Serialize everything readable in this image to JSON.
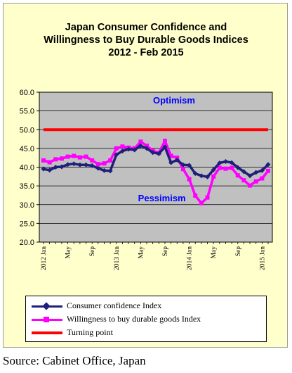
{
  "chart_data": {
    "type": "line",
    "title_lines": [
      "Japan Consumer Confidence and",
      "Willingness to Buy Durable Goods Indices",
      "2012 - Feb  2015"
    ],
    "ylim": [
      20,
      60
    ],
    "yticks": [
      "60.0",
      "55.0",
      "50.0",
      "45.0",
      "40.0",
      "35.0",
      "30.0",
      "25.0",
      "20.0"
    ],
    "ytick_values": [
      60,
      55,
      50,
      45,
      40,
      35,
      30,
      25,
      20
    ],
    "grid": true,
    "x_tick_labels": [
      {
        "label": "2012 Jan",
        "index": 0
      },
      {
        "label": "May",
        "index": 4
      },
      {
        "label": "Sep",
        "index": 8
      },
      {
        "label": "2013 Jan",
        "index": 12
      },
      {
        "label": "May",
        "index": 16
      },
      {
        "label": "Sep",
        "index": 20
      },
      {
        "label": "2014 Jan",
        "index": 24
      },
      {
        "label": "May",
        "index": 28
      },
      {
        "label": "Sep",
        "index": 32
      },
      {
        "label": "2015 Jan",
        "index": 36
      }
    ],
    "annotations": [
      {
        "text": "Optimism",
        "x_index": 21.5,
        "y": 57.0,
        "color": "#0000ff"
      },
      {
        "text": "Pessimism",
        "x_index": 19.5,
        "y": 30.9,
        "color": "#0000ff"
      }
    ],
    "turning_point": 50.0,
    "series": [
      {
        "name": "Consumer confidence Index",
        "color": "#1f1f7a",
        "marker": "diamond",
        "values": [
          39.5,
          39.2,
          40.0,
          40.1,
          40.7,
          40.9,
          40.6,
          40.6,
          40.4,
          39.7,
          39.1,
          39.0,
          43.3,
          44.3,
          44.8,
          44.6,
          45.7,
          45.0,
          43.9,
          43.6,
          45.4,
          41.2,
          41.9,
          40.6,
          40.5,
          38.3,
          37.7,
          37.4,
          39.3,
          41.1,
          41.5,
          41.2,
          39.9,
          38.8,
          37.7,
          38.6,
          39.1,
          40.7
        ]
      },
      {
        "name": "Willingness to buy durable goods Index",
        "color": "#ff00ff",
        "marker": "square",
        "values": [
          41.8,
          41.3,
          42.1,
          42.3,
          42.8,
          43.0,
          42.6,
          42.8,
          41.8,
          40.8,
          41.0,
          41.8,
          45.0,
          45.5,
          45.2,
          45.0,
          46.8,
          45.7,
          44.4,
          43.8,
          47.0,
          43.0,
          42.5,
          39.5,
          36.8,
          32.4,
          30.4,
          31.9,
          37.5,
          39.8,
          39.6,
          39.8,
          37.8,
          36.5,
          35.1,
          36.2,
          37.0,
          39.0
        ]
      },
      {
        "name": "Turning point",
        "color": "#ff0000",
        "marker": "none",
        "values": [
          50,
          50,
          50,
          50,
          50,
          50,
          50,
          50,
          50,
          50,
          50,
          50,
          50,
          50,
          50,
          50,
          50,
          50,
          50,
          50,
          50,
          50,
          50,
          50,
          50,
          50,
          50,
          50,
          50,
          50,
          50,
          50,
          50,
          50,
          50,
          50,
          50,
          50
        ]
      }
    ],
    "legend_placement": "bottom"
  },
  "source": "Source: Cabinet Office, Japan",
  "colors": {
    "frame_bg": "#ffffcc",
    "plot_bg": "#c0c0c0",
    "grid": "#000000"
  }
}
